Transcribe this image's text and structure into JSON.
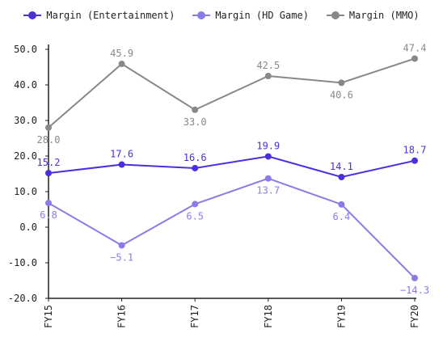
{
  "chart_data": {
    "type": "line",
    "categories": [
      "FY15",
      "FY16",
      "FY17",
      "FY18",
      "FY19",
      "FY20"
    ],
    "series": [
      {
        "name": "Margin (Entertainment)",
        "color": "#4a2fe0",
        "values": [
          15.2,
          17.6,
          16.6,
          19.9,
          14.1,
          18.7
        ]
      },
      {
        "name": "Margin (HD Game)",
        "color": "#8a7ce8",
        "values": [
          6.8,
          -5.1,
          6.5,
          13.7,
          6.4,
          -14.3
        ]
      },
      {
        "name": "Margin (MMO)",
        "color": "#888888",
        "values": [
          28.0,
          45.9,
          33.0,
          42.5,
          40.6,
          47.4
        ]
      }
    ],
    "y_ticks": [
      "50.0",
      "40.0",
      "30.0",
      "20.0",
      "10.0",
      "0.0",
      "-10.0",
      "-20.0"
    ],
    "ylim": [
      -20,
      50
    ],
    "grid": false,
    "legend_position": "top-center"
  }
}
